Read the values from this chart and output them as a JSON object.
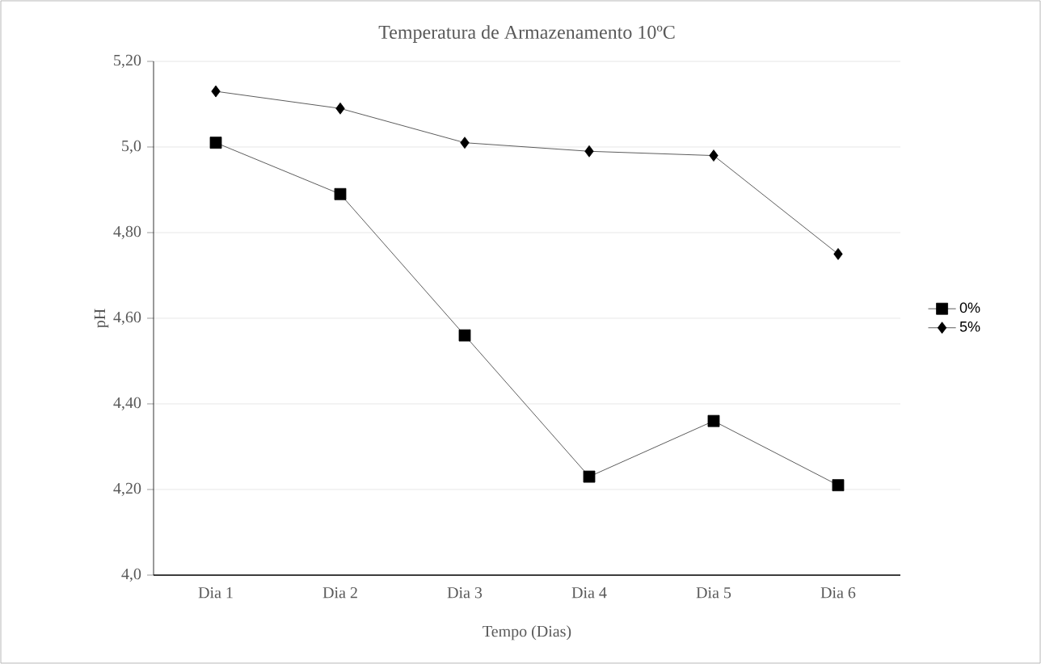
{
  "chart_data": {
    "type": "line",
    "title": "Temperatura de Armazenamento 10ºC",
    "xlabel": "Tempo (Dias)",
    "ylabel": "pH",
    "categories": [
      "Dia 1",
      "Dia 2",
      "Dia 3",
      "Dia 4",
      "Dia 5",
      "Dia 6"
    ],
    "series": [
      {
        "name": "0%",
        "color": "#000000",
        "marker": "square",
        "values": [
          5.01,
          4.89,
          4.56,
          4.23,
          4.36,
          4.21
        ]
      },
      {
        "name": "5%",
        "color": "#000000",
        "marker": "diamond",
        "values": [
          5.13,
          5.09,
          5.01,
          4.99,
          4.98,
          4.75
        ]
      }
    ],
    "ylim": [
      4.0,
      5.2
    ],
    "yticks": [
      {
        "value": 4.0,
        "label": "4,0"
      },
      {
        "value": 4.2,
        "label": "4,20"
      },
      {
        "value": 4.4,
        "label": "4,40"
      },
      {
        "value": 4.6,
        "label": "4,60"
      },
      {
        "value": 4.8,
        "label": "4,80"
      },
      {
        "value": 5.0,
        "label": "5,0"
      },
      {
        "value": 5.2,
        "label": "5,20"
      }
    ],
    "grid": "y",
    "legend": "right",
    "line_style": "solid"
  }
}
